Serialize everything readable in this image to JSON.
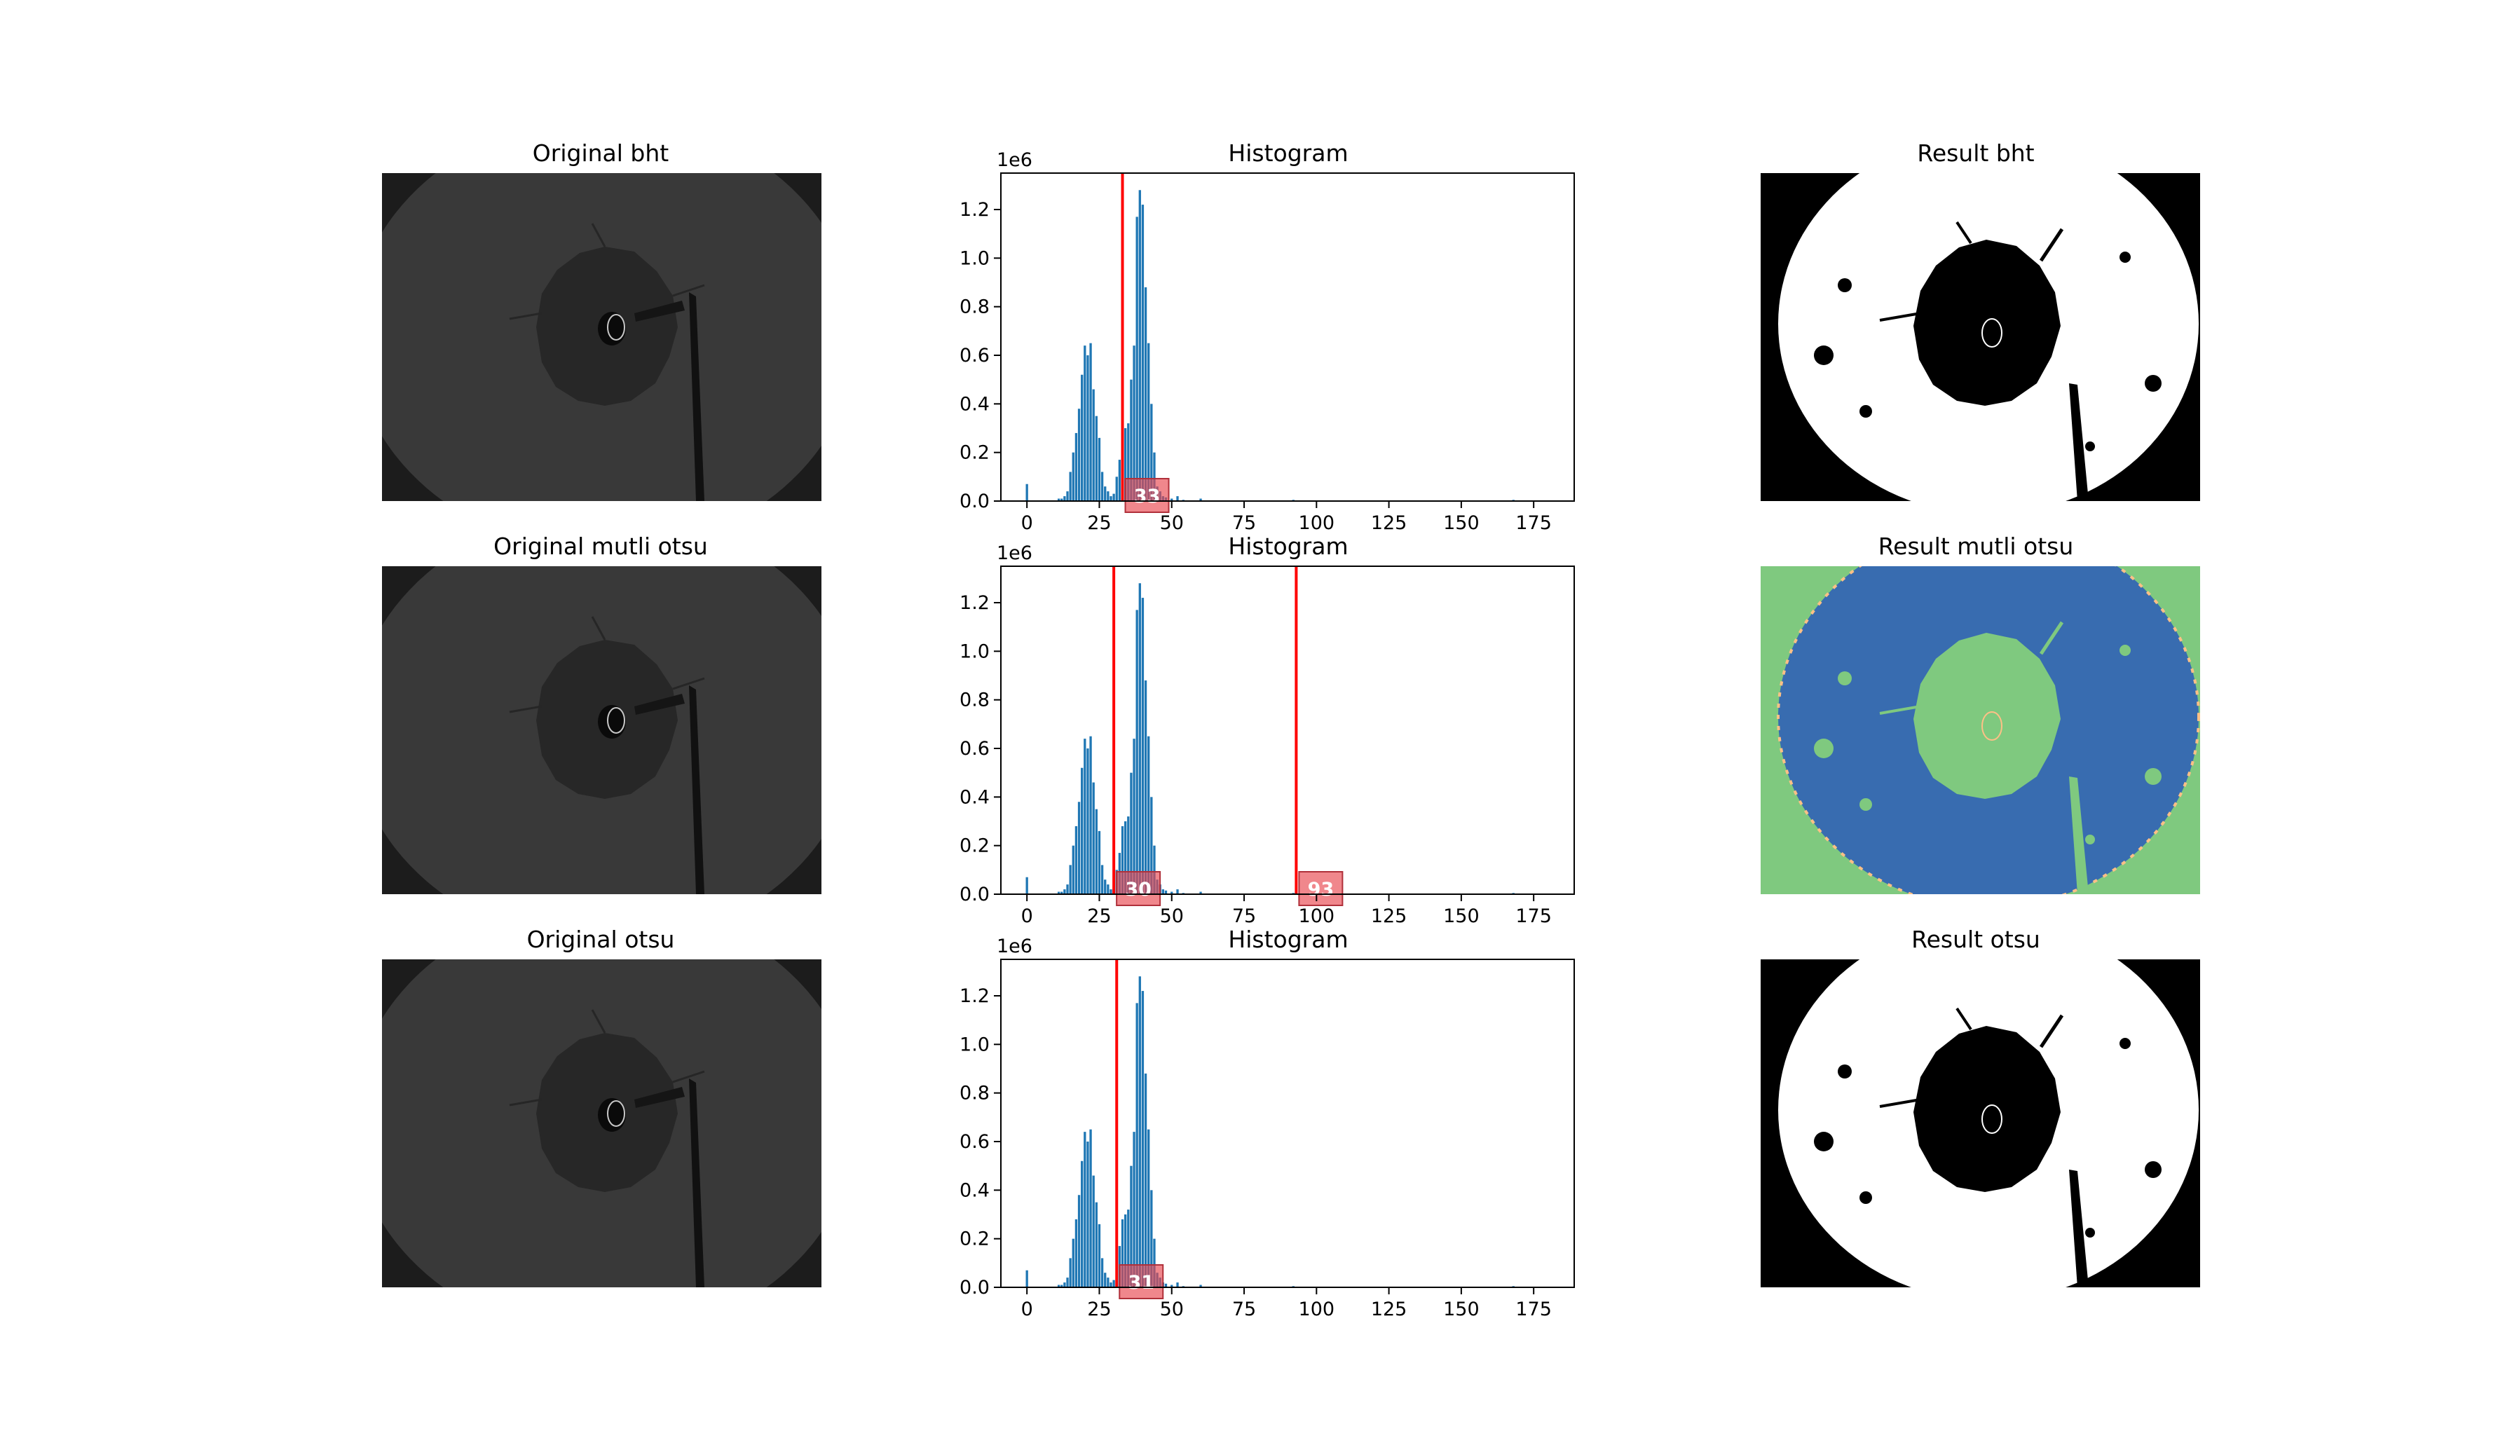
{
  "rows": [
    {
      "left_title": "Original bht",
      "right_title": "Result bht",
      "result_style": "binary"
    },
    {
      "left_title": "Original mutli otsu",
      "right_title": "Result mutli otsu",
      "result_style": "multi"
    },
    {
      "left_title": "Original otsu",
      "right_title": "Result otsu",
      "result_style": "binary"
    }
  ],
  "colors": {
    "bar": "#1f77b4",
    "threshold": "#ff0000",
    "label_box": "#e8474f",
    "multi_bg": "#7fc97f",
    "multi_fg": "#386cb0",
    "multi_edge": "#fdc086"
  },
  "chart_data": [
    {
      "type": "bar",
      "title": "Histogram",
      "offset_text": "1e6",
      "x_ticks": [
        0,
        25,
        50,
        75,
        100,
        125,
        150,
        175
      ],
      "y_ticks": [
        "0.0",
        "0.2",
        "0.4",
        "0.6",
        "0.8",
        "1.0",
        "1.2"
      ],
      "xlim": [
        -9,
        189
      ],
      "ylim": [
        0,
        1.35
      ],
      "x": [
        0,
        11,
        12,
        13,
        14,
        15,
        16,
        17,
        18,
        19,
        20,
        21,
        22,
        23,
        24,
        25,
        26,
        27,
        28,
        29,
        30,
        31,
        32,
        33,
        34,
        35,
        36,
        37,
        38,
        39,
        40,
        41,
        42,
        43,
        44,
        45,
        46,
        47,
        48,
        50,
        52,
        54,
        60,
        92,
        168
      ],
      "values": [
        0.07,
        0.01,
        0.01,
        0.02,
        0.04,
        0.12,
        0.2,
        0.28,
        0.38,
        0.52,
        0.64,
        0.6,
        0.65,
        0.46,
        0.35,
        0.26,
        0.12,
        0.06,
        0.04,
        0.02,
        0.03,
        0.1,
        0.17,
        0.28,
        0.3,
        0.32,
        0.5,
        0.64,
        1.17,
        1.28,
        1.22,
        0.88,
        0.65,
        0.4,
        0.2,
        0.06,
        0.04,
        0.02,
        0.015,
        0.01,
        0.02,
        0.005,
        0.01,
        0.005,
        0.005
      ],
      "thresholds": [
        33
      ]
    },
    {
      "type": "bar",
      "title": "Histogram",
      "offset_text": "1e6",
      "x_ticks": [
        0,
        25,
        50,
        75,
        100,
        125,
        150,
        175
      ],
      "y_ticks": [
        "0.0",
        "0.2",
        "0.4",
        "0.6",
        "0.8",
        "1.0",
        "1.2"
      ],
      "xlim": [
        -9,
        189
      ],
      "ylim": [
        0,
        1.35
      ],
      "x": [
        0,
        11,
        12,
        13,
        14,
        15,
        16,
        17,
        18,
        19,
        20,
        21,
        22,
        23,
        24,
        25,
        26,
        27,
        28,
        29,
        30,
        31,
        32,
        33,
        34,
        35,
        36,
        37,
        38,
        39,
        40,
        41,
        42,
        43,
        44,
        45,
        46,
        47,
        48,
        50,
        52,
        54,
        60,
        92,
        168
      ],
      "values": [
        0.07,
        0.01,
        0.01,
        0.02,
        0.04,
        0.12,
        0.2,
        0.28,
        0.38,
        0.52,
        0.64,
        0.6,
        0.65,
        0.46,
        0.35,
        0.26,
        0.12,
        0.06,
        0.04,
        0.02,
        0.03,
        0.1,
        0.17,
        0.28,
        0.3,
        0.32,
        0.5,
        0.64,
        1.17,
        1.28,
        1.22,
        0.88,
        0.65,
        0.4,
        0.2,
        0.06,
        0.04,
        0.02,
        0.015,
        0.01,
        0.02,
        0.005,
        0.01,
        0.005,
        0.005
      ],
      "thresholds": [
        30,
        93
      ]
    },
    {
      "type": "bar",
      "title": "Histogram",
      "offset_text": "1e6",
      "x_ticks": [
        0,
        25,
        50,
        75,
        100,
        125,
        150,
        175
      ],
      "y_ticks": [
        "0.0",
        "0.2",
        "0.4",
        "0.6",
        "0.8",
        "1.0",
        "1.2"
      ],
      "xlim": [
        -9,
        189
      ],
      "ylim": [
        0,
        1.35
      ],
      "x": [
        0,
        11,
        12,
        13,
        14,
        15,
        16,
        17,
        18,
        19,
        20,
        21,
        22,
        23,
        24,
        25,
        26,
        27,
        28,
        29,
        30,
        31,
        32,
        33,
        34,
        35,
        36,
        37,
        38,
        39,
        40,
        41,
        42,
        43,
        44,
        45,
        46,
        47,
        48,
        50,
        52,
        54,
        60,
        92,
        168
      ],
      "values": [
        0.07,
        0.01,
        0.01,
        0.02,
        0.04,
        0.12,
        0.2,
        0.28,
        0.38,
        0.52,
        0.64,
        0.6,
        0.65,
        0.46,
        0.35,
        0.26,
        0.12,
        0.06,
        0.04,
        0.02,
        0.03,
        0.1,
        0.17,
        0.28,
        0.3,
        0.32,
        0.5,
        0.64,
        1.17,
        1.28,
        1.22,
        0.88,
        0.65,
        0.4,
        0.2,
        0.06,
        0.04,
        0.02,
        0.015,
        0.01,
        0.02,
        0.005,
        0.01,
        0.005,
        0.005
      ],
      "thresholds": [
        31
      ]
    }
  ]
}
